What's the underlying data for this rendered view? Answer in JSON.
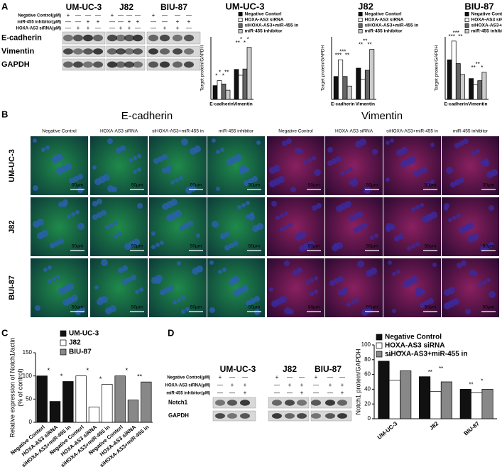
{
  "panel_labels": [
    "A",
    "B",
    "C",
    "D"
  ],
  "blot_a": {
    "cell_lines": [
      "UM-UC-3",
      "J82",
      "BIU-87"
    ],
    "conditions": [
      {
        "label": "Negative Control(μM)",
        "signs": [
          "+",
          "—",
          "—",
          "—",
          "+",
          "—",
          "—",
          "—",
          "+",
          "—",
          "—",
          "—"
        ]
      },
      {
        "label": "miR-455 inhibitor(μM)",
        "signs": [
          "—",
          "—",
          "+",
          "+",
          "—",
          "—",
          "+",
          "+",
          "—",
          "—",
          "+",
          "+"
        ]
      },
      {
        "label": "HOXA-AS3 siRNA(μM)",
        "signs": [
          "—",
          "+",
          "+",
          "—",
          "—",
          "+",
          "+",
          "—",
          "—",
          "+",
          "+",
          "—"
        ]
      }
    ],
    "bands": [
      "E-cadherin",
      "Vimentin",
      "GAPDH"
    ]
  },
  "microscopy": {
    "titles": [
      "E-cadherin",
      "Vimentin"
    ],
    "columns": [
      "Negative Control",
      "HOXA-AS3 siRNA",
      "siHOXA-AS3+miR-455 in",
      "miR-455 inhibitor",
      "Negative Control",
      "HOXA-AS3 siRNA",
      "siHOXA-AS3+miR-455 in",
      "miR-455 inhibitor"
    ],
    "rows": [
      "UM-UC-3",
      "J82",
      "BUI-87"
    ],
    "scale_bar": "50μm"
  },
  "blot_d": {
    "cell_lines": [
      "UM-UC-3",
      "J82",
      "BIU-87"
    ],
    "conditions": [
      {
        "label": "Negative Control(μM)",
        "signs": [
          "+",
          "—",
          "—",
          "+",
          "—",
          "—",
          "+",
          "—",
          "—"
        ]
      },
      {
        "label": "HOXA-AS3 siRNA(μM)",
        "signs": [
          "—",
          "+",
          "+",
          "—",
          "+",
          "+",
          "—",
          "+",
          "+"
        ]
      },
      {
        "label": "miR-455 inhibitor(μM)",
        "signs": [
          "—",
          "—",
          "+",
          "—",
          "—",
          "+",
          "—",
          "—",
          "+"
        ]
      }
    ],
    "bands": [
      "Notch1",
      "GAPDH"
    ]
  },
  "chart_data": [
    {
      "type": "bar",
      "title": "UM-UC-3",
      "ylabel": "Target protein/GAPDH",
      "categories": [
        "E-cadherin",
        "Vimentin"
      ],
      "ylim": [
        0,
        150
      ],
      "series": [
        {
          "name": "Negative Contorl",
          "color": "#111111",
          "values": [
            33,
            72
          ]
        },
        {
          "name": "HOXA-AS3 siRNA",
          "color": "#ffffff",
          "values": [
            45,
            58
          ]
        },
        {
          "name": "siHOXA-AS3+miR-455 in",
          "color": "#666666",
          "values": [
            37,
            73
          ]
        },
        {
          "name": "miR-455 inhibitor",
          "color": "#cccccc",
          "values": [
            22,
            125
          ]
        }
      ],
      "annotations": [
        [
          "*",
          "*",
          "*",
          "**"
        ],
        [
          "**",
          "*",
          "*",
          "*"
        ]
      ]
    },
    {
      "type": "bar",
      "title": "J82",
      "ylabel": "Target protein/GAPDH",
      "categories": [
        "E-cadherin",
        "Vimentin"
      ],
      "ylim": [
        0,
        150
      ],
      "series": [
        {
          "name": "Negative Contorl",
          "color": "#111111",
          "values": [
            55,
            75
          ]
        },
        {
          "name": "HOXA-AS3 siRNA",
          "color": "#ffffff",
          "values": [
            95,
            48
          ]
        },
        {
          "name": "siHOXA-AS3+miR-455 in",
          "color": "#666666",
          "values": [
            55,
            70
          ]
        },
        {
          "name": "miR-455 inhibitor",
          "color": "#cccccc",
          "values": [
            32,
            120
          ]
        }
      ],
      "annotations": [
        [
          "***",
          "***",
          "**"
        ],
        [
          "**",
          "**",
          "**"
        ]
      ]
    },
    {
      "type": "bar",
      "title": "BIU-87",
      "ylabel": "Target protein/GAPDH",
      "categories": [
        "E-cadherin",
        "Vimentin"
      ],
      "ylim": [
        0,
        150
      ],
      "series": [
        {
          "name": "Negative Control",
          "color": "#111111",
          "values": [
            95,
            50
          ]
        },
        {
          "name": "HOXA-AS3 siRNA",
          "color": "#ffffff",
          "values": [
            140,
            35
          ]
        },
        {
          "name": "siHOXA-AS3+miR-455 in",
          "color": "#666666",
          "values": [
            86,
            45
          ]
        },
        {
          "name": "miR-455 inhibitor",
          "color": "#cccccc",
          "values": [
            60,
            65
          ]
        }
      ],
      "annotations": [
        [
          "***",
          "***",
          "**"
        ],
        [
          "**",
          "**",
          "*"
        ]
      ]
    },
    {
      "type": "bar",
      "ylabel": [
        "Relative expression of Notch1/actin",
        "(% of control)"
      ],
      "categories": [
        "Negative Contorl",
        "HOXA-AS3 siRNA",
        "siHOXA-AS3+miR-455 in",
        "Negative Contorl",
        "HOXA-AS3 siRNA",
        "siHOXA-AS3+miR-455 in",
        "Negative Contorl",
        "HOXA-AS3 siRNA",
        "siHOXA-AS3+miR-455 in"
      ],
      "ylim": [
        0,
        150
      ],
      "yticks": [
        0,
        50,
        100,
        150
      ],
      "series": [
        {
          "name": "UM-UC-3",
          "color": "#111111",
          "values": [
            100,
            45,
            88,
            null,
            null,
            null,
            null,
            null,
            null
          ]
        },
        {
          "name": "J82",
          "color": "#ffffff",
          "values": [
            null,
            null,
            null,
            100,
            33,
            82,
            null,
            null,
            null
          ]
        },
        {
          "name": "BIU-87",
          "color": "#888888",
          "values": [
            null,
            null,
            null,
            null,
            null,
            null,
            100,
            48,
            87
          ]
        }
      ],
      "annotations": [
        "*",
        "*",
        null,
        "*",
        "*",
        null,
        "*",
        "**",
        null
      ]
    },
    {
      "type": "bar",
      "ylabel": "Notch1 protein/GAPDH",
      "categories": [
        "UM-UC-3",
        "J82",
        "BIU-87"
      ],
      "ylim": [
        0,
        100
      ],
      "yticks": [
        0,
        20,
        40,
        60,
        80,
        100
      ],
      "series": [
        {
          "name": "Negative Control",
          "color": "#111111",
          "values": [
            78,
            57,
            40
          ]
        },
        {
          "name": "HOXA-AS3 siRNA",
          "color": "#ffffff",
          "values": [
            52,
            37,
            35
          ]
        },
        {
          "name": "siHOXA-AS3+miR-455 in",
          "color": "#888888",
          "values": [
            65,
            50,
            40
          ]
        }
      ],
      "annotations": [
        [
          "**",
          "**"
        ],
        [
          "**",
          "**"
        ],
        [
          "**",
          "*"
        ]
      ]
    }
  ]
}
